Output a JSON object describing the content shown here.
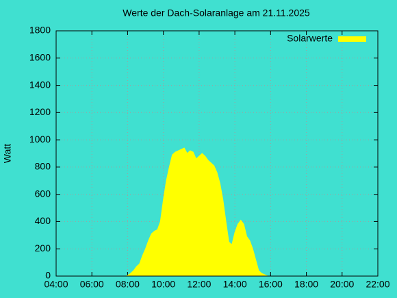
{
  "chart_data": {
    "type": "area",
    "title": "Werte der Dach-Solaranlage am 21.11.2025",
    "y_label": "Watt",
    "x": [
      "07:55",
      "08:00",
      "08:10",
      "08:20",
      "08:30",
      "08:40",
      "08:50",
      "09:00",
      "09:10",
      "09:20",
      "09:30",
      "09:40",
      "09:50",
      "10:00",
      "10:10",
      "10:20",
      "10:30",
      "10:40",
      "10:50",
      "11:00",
      "11:10",
      "11:20",
      "11:30",
      "11:40",
      "11:50",
      "12:00",
      "12:10",
      "12:20",
      "12:30",
      "12:40",
      "12:50",
      "13:00",
      "13:10",
      "13:20",
      "13:30",
      "13:40",
      "13:50",
      "14:00",
      "14:10",
      "14:20",
      "14:30",
      "14:40",
      "14:50",
      "15:00",
      "15:10",
      "15:20",
      "15:30",
      "15:40",
      "15:50"
    ],
    "series": [
      {
        "name": "Solarwerte",
        "color": "#ffff00",
        "values": [
          0,
          5,
          20,
          40,
          70,
          90,
          150,
          200,
          260,
          310,
          330,
          340,
          400,
          560,
          700,
          800,
          890,
          910,
          920,
          930,
          940,
          900,
          920,
          910,
          860,
          880,
          900,
          880,
          850,
          830,
          810,
          760,
          680,
          560,
          400,
          250,
          230,
          320,
          380,
          410,
          380,
          290,
          260,
          200,
          120,
          40,
          20,
          10,
          0
        ]
      }
    ],
    "xlim": [
      "04:00",
      "22:00"
    ],
    "xticks": [
      "04:00",
      "06:00",
      "08:00",
      "10:00",
      "12:00",
      "14:00",
      "16:00",
      "18:00",
      "20:00",
      "22:00"
    ],
    "ylim": [
      0,
      1800
    ],
    "yticks": [
      0,
      200,
      400,
      600,
      800,
      1000,
      1200,
      1400,
      1600,
      1800
    ],
    "grid": true,
    "legend": "top-right"
  }
}
